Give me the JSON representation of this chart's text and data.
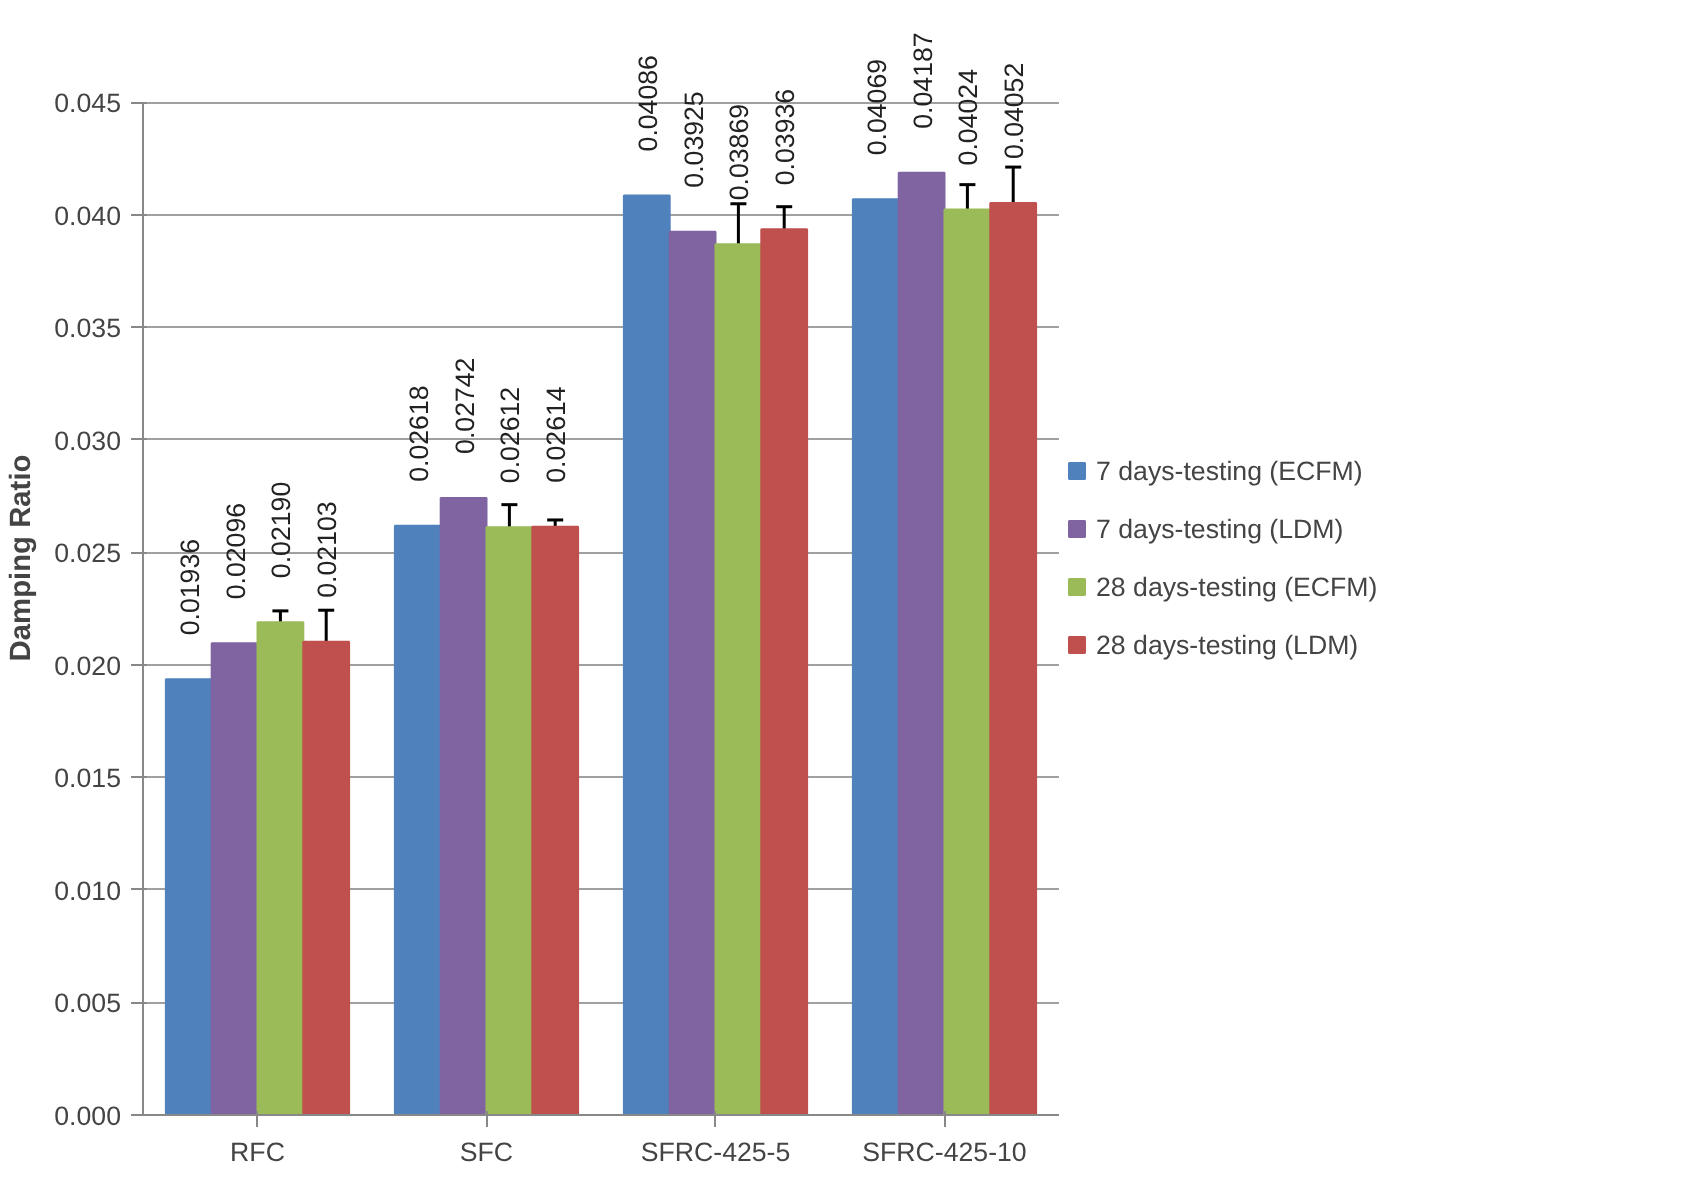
{
  "chart_data": {
    "type": "bar",
    "ylabel": "Damping Ratio",
    "categories": [
      "RFC",
      "SFC",
      "SFRC-425-5",
      "SFRC-425-10"
    ],
    "series": [
      {
        "name": "7 days-testing (ECFM)",
        "color": "#4f81bd",
        "values": [
          0.01936,
          0.02618,
          0.04086,
          0.04069
        ],
        "value_labels": [
          "0.01936",
          "0.02618",
          "0.04086",
          "0.04069"
        ]
      },
      {
        "name": "7 days-testing (LDM)",
        "color": "#8064a2",
        "values": [
          0.02096,
          0.02742,
          0.03925,
          0.04187
        ],
        "value_labels": [
          "0.02096",
          "0.02742",
          "0.03925",
          "0.04187"
        ]
      },
      {
        "name": "28 days-testing (ECFM)",
        "color": "#9bbb59",
        "values": [
          0.0219,
          0.02612,
          0.03869,
          0.04024
        ],
        "value_labels": [
          "0.02190",
          "0.02612",
          "0.03869",
          "0.04024"
        ],
        "errors": [
          0.0005,
          0.001,
          0.0018,
          0.0011
        ]
      },
      {
        "name": "28 days-testing (LDM)",
        "color": "#c0504d",
        "values": [
          0.02103,
          0.02614,
          0.03936,
          0.04052
        ],
        "value_labels": [
          "0.02103",
          "0.02614",
          "0.03936",
          "0.04052"
        ],
        "errors": [
          0.0014,
          0.0003,
          0.001,
          0.0016
        ]
      }
    ],
    "ylim": [
      0,
      0.045
    ],
    "yticks": [
      {
        "value": 0,
        "label": "0.000"
      },
      {
        "value": 0.005,
        "label": "0.005"
      },
      {
        "value": 0.01,
        "label": "0.010"
      },
      {
        "value": 0.015,
        "label": "0.015"
      },
      {
        "value": 0.02,
        "label": "0.020"
      },
      {
        "value": 0.025,
        "label": "0.025"
      },
      {
        "value": 0.03,
        "label": "0.030"
      },
      {
        "value": 0.035,
        "label": "0.035"
      },
      {
        "value": 0.04,
        "label": "0.040"
      },
      {
        "value": 0.045,
        "label": "0.045"
      }
    ],
    "grid": "y",
    "legend": "right"
  }
}
